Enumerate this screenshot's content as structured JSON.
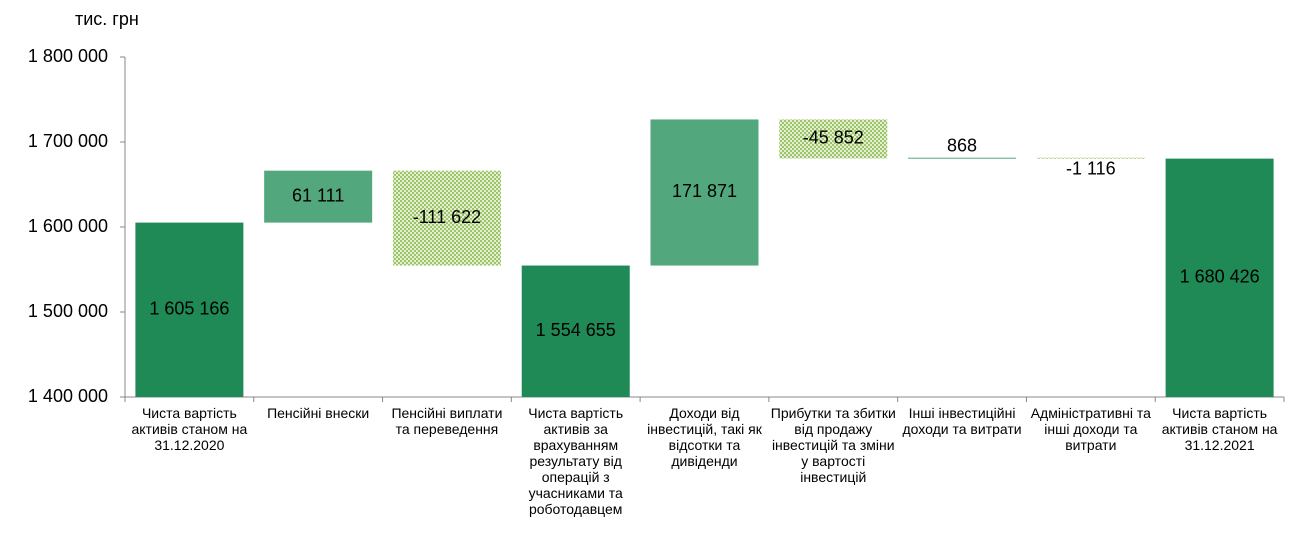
{
  "chart_data": {
    "type": "waterfall",
    "y_unit_label": "тис. грн",
    "categories": [
      "Чиста вартість активів станом на 31.12.2020",
      "Пенсійні внески",
      "Пенсійні виплати та переведення",
      "Чиста вартість активів за врахуванням результату від операцій з учасниками та роботодавцем",
      "Доходи від інвестицій, такі як відсотки та дивіденди",
      "Прибутки та збитки від продажу інвестицій та зміни у вартості інвестицій",
      "Інші інвестиційні доходи та витрати",
      "Адміністративні та інші доходи та витрати",
      "Чиста вартість активів станом на 31.12.2021"
    ],
    "measures": [
      "absolute",
      "relative",
      "relative",
      "absolute",
      "relative",
      "relative",
      "relative",
      "relative",
      "absolute"
    ],
    "values": [
      1605166,
      61111,
      -111622,
      1554655,
      171871,
      -45852,
      868,
      -1116,
      1680426
    ],
    "value_labels": [
      "1 605 166",
      "61 111",
      "-111 622",
      "1 554 655",
      "171 871",
      "-45 852",
      "868",
      "-1 116",
      "1 680 426"
    ],
    "colors": {
      "absolute": "#1f8a55",
      "increase": "#52a77d",
      "decrease": "url(#hatch)"
    },
    "ylim": [
      1400000,
      1800000
    ],
    "yticks": [
      {
        "value": 1400000,
        "label": "1 400 000"
      },
      {
        "value": 1500000,
        "label": "1 500 000"
      },
      {
        "value": 1600000,
        "label": "1 600 000"
      },
      {
        "value": 1700000,
        "label": "1 700 000"
      },
      {
        "value": 1800000,
        "label": "1 800 000"
      }
    ],
    "grid": false
  }
}
